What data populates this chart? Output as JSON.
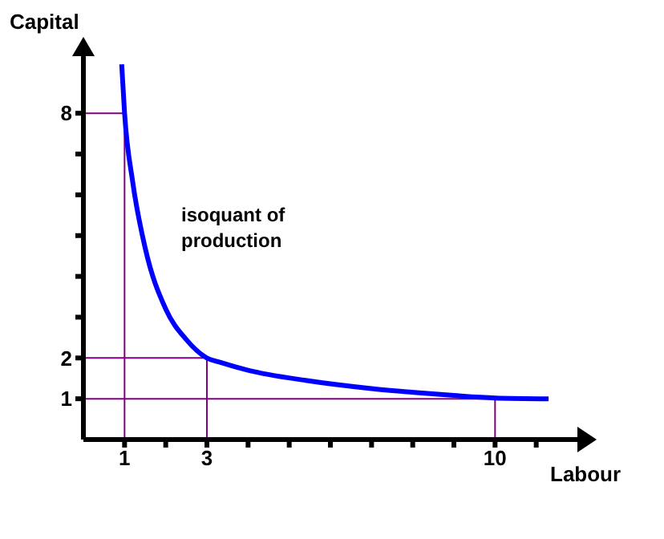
{
  "chart_data": {
    "type": "line",
    "xlabel": "Labour",
    "ylabel": "Capital",
    "annotations": [
      "isoquant of production"
    ],
    "x": [
      0.93,
      1,
      1.2,
      1.5,
      2,
      2.5,
      3,
      3.3,
      4,
      5.4,
      7,
      8.1,
      9,
      10,
      11.3
    ],
    "series": [
      {
        "color": "#0000ff",
        "values": [
          9.2,
          8,
          6.3,
          4.7,
          3.2,
          2.45,
          2,
          1.9,
          1.7,
          1.45,
          1.25,
          1.15,
          1.08,
          1.02,
          1
        ]
      }
    ],
    "xlim": [
      0,
      12
    ],
    "ylim": [
      0,
      9.4
    ],
    "xticks": [
      {
        "value": 1,
        "label": "1"
      },
      {
        "value": 2,
        "label": null
      },
      {
        "value": 3,
        "label": "3"
      },
      {
        "value": 4,
        "label": null
      },
      {
        "value": 5,
        "label": null
      },
      {
        "value": 6,
        "label": null
      },
      {
        "value": 7,
        "label": null
      },
      {
        "value": 8,
        "label": null
      },
      {
        "value": 9,
        "label": null
      },
      {
        "value": 10,
        "label": "10"
      },
      {
        "value": 11,
        "label": null
      }
    ],
    "yticks": [
      {
        "value": 1,
        "label": "1"
      },
      {
        "value": 2,
        "label": "2"
      },
      {
        "value": 3,
        "label": null
      },
      {
        "value": 4,
        "label": null
      },
      {
        "value": 5,
        "label": null
      },
      {
        "value": 6,
        "label": null
      },
      {
        "value": 7,
        "label": null
      },
      {
        "value": 8,
        "label": "8"
      }
    ],
    "ref_lines": [
      {
        "axis": "x",
        "value": 1,
        "color": "#800080"
      },
      {
        "axis": "y",
        "value": 8,
        "color": "#800080"
      },
      {
        "axis": "x",
        "value": 3,
        "color": "#800080"
      },
      {
        "axis": "y",
        "value": 2,
        "color": "#800080"
      },
      {
        "axis": "x",
        "value": 10,
        "color": "#800080"
      },
      {
        "axis": "y",
        "value": 1,
        "color": "#800080"
      }
    ],
    "marker": "none",
    "line_style": "solid"
  }
}
